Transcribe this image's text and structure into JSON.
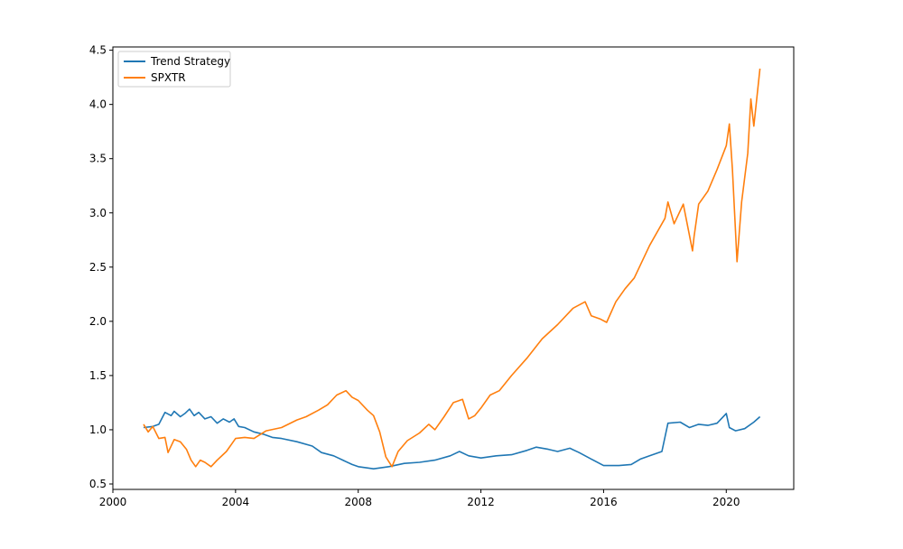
{
  "chart_data": {
    "type": "line",
    "title": "",
    "xlabel": "",
    "ylabel": "",
    "xlim": [
      2000.0,
      2022.2
    ],
    "ylim": [
      0.45,
      4.53
    ],
    "x_ticks": [
      2000,
      2004,
      2008,
      2012,
      2016,
      2020
    ],
    "x_tick_labels": [
      "2000",
      "2004",
      "2008",
      "2012",
      "2016",
      "2020"
    ],
    "y_ticks": [
      0.5,
      1.0,
      1.5,
      2.0,
      2.5,
      3.0,
      3.5,
      4.0,
      4.5
    ],
    "y_tick_labels": [
      "0.5",
      "1.0",
      "1.5",
      "2.0",
      "2.5",
      "3.0",
      "3.5",
      "4.0",
      "4.5"
    ],
    "grid": false,
    "legend_position": "upper-left",
    "series": [
      {
        "name": "Trend Strategy",
        "color": "#1f77b4",
        "x": [
          2001.0,
          2001.3,
          2001.5,
          2001.7,
          2001.9,
          2002.0,
          2002.2,
          2002.35,
          2002.5,
          2002.65,
          2002.8,
          2003.0,
          2003.2,
          2003.4,
          2003.6,
          2003.8,
          2003.95,
          2004.1,
          2004.3,
          2004.6,
          2004.9,
          2005.2,
          2005.5,
          2006.0,
          2006.5,
          2006.8,
          2007.2,
          2007.5,
          2007.8,
          2008.0,
          2008.5,
          2009.0,
          2009.5,
          2010.0,
          2010.5,
          2011.0,
          2011.3,
          2011.6,
          2012.0,
          2012.5,
          2013.0,
          2013.5,
          2013.8,
          2014.2,
          2014.5,
          2014.9,
          2015.2,
          2015.6,
          2016.0,
          2016.5,
          2016.9,
          2017.2,
          2017.5,
          2017.9,
          2018.1,
          2018.5,
          2018.8,
          2019.1,
          2019.4,
          2019.7,
          2020.0,
          2020.1,
          2020.3,
          2020.6,
          2020.9,
          2021.1
        ],
        "y": [
          1.02,
          1.03,
          1.05,
          1.16,
          1.13,
          1.17,
          1.12,
          1.15,
          1.19,
          1.13,
          1.16,
          1.1,
          1.12,
          1.06,
          1.1,
          1.07,
          1.1,
          1.03,
          1.02,
          0.98,
          0.96,
          0.93,
          0.92,
          0.89,
          0.85,
          0.79,
          0.76,
          0.72,
          0.68,
          0.66,
          0.64,
          0.66,
          0.69,
          0.7,
          0.72,
          0.76,
          0.8,
          0.76,
          0.74,
          0.76,
          0.77,
          0.81,
          0.84,
          0.82,
          0.8,
          0.83,
          0.79,
          0.73,
          0.67,
          0.67,
          0.68,
          0.73,
          0.76,
          0.8,
          1.06,
          1.07,
          1.02,
          1.05,
          1.04,
          1.06,
          1.15,
          1.02,
          0.99,
          1.01,
          1.07,
          1.12
        ]
      },
      {
        "name": "SPXTR",
        "color": "#ff7f0e",
        "x": [
          2001.0,
          2001.15,
          2001.3,
          2001.5,
          2001.7,
          2001.8,
          2002.0,
          2002.2,
          2002.4,
          2002.55,
          2002.7,
          2002.85,
          2003.0,
          2003.2,
          2003.4,
          2003.7,
          2004.0,
          2004.3,
          2004.6,
          2005.0,
          2005.5,
          2006.0,
          2006.3,
          2006.7,
          2007.0,
          2007.3,
          2007.6,
          2007.8,
          2008.0,
          2008.3,
          2008.5,
          2008.7,
          2008.9,
          2009.1,
          2009.3,
          2009.6,
          2010.0,
          2010.3,
          2010.5,
          2010.8,
          2011.1,
          2011.4,
          2011.6,
          2011.8,
          2012.0,
          2012.3,
          2012.6,
          2013.0,
          2013.5,
          2014.0,
          2014.5,
          2015.0,
          2015.4,
          2015.6,
          2015.9,
          2016.1,
          2016.4,
          2016.7,
          2017.0,
          2017.5,
          2018.0,
          2018.1,
          2018.3,
          2018.6,
          2018.9,
          2018.95,
          2019.1,
          2019.4,
          2019.7,
          2020.0,
          2020.1,
          2020.2,
          2020.35,
          2020.5,
          2020.7,
          2020.8,
          2020.9,
          2021.1
        ],
        "y": [
          1.05,
          0.98,
          1.03,
          0.92,
          0.93,
          0.79,
          0.91,
          0.89,
          0.82,
          0.72,
          0.66,
          0.72,
          0.7,
          0.66,
          0.72,
          0.8,
          0.92,
          0.93,
          0.92,
          0.99,
          1.02,
          1.09,
          1.12,
          1.18,
          1.23,
          1.32,
          1.36,
          1.3,
          1.27,
          1.18,
          1.13,
          0.98,
          0.75,
          0.66,
          0.8,
          0.9,
          0.97,
          1.05,
          1.0,
          1.12,
          1.25,
          1.28,
          1.1,
          1.13,
          1.2,
          1.32,
          1.36,
          1.5,
          1.66,
          1.84,
          1.97,
          2.12,
          2.18,
          2.05,
          2.02,
          1.99,
          2.18,
          2.3,
          2.4,
          2.7,
          2.95,
          3.1,
          2.9,
          3.08,
          2.65,
          2.78,
          3.08,
          3.2,
          3.4,
          3.62,
          3.82,
          3.4,
          2.55,
          3.1,
          3.55,
          4.05,
          3.8,
          4.33
        ]
      }
    ]
  }
}
